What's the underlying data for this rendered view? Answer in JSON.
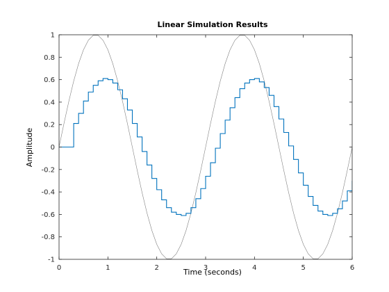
{
  "chart_data": {
    "type": "line",
    "title": "Linear Simulation Results",
    "xlabel": "Time (seconds)",
    "ylabel": "Amplitude",
    "xlim": [
      0,
      6
    ],
    "ylim": [
      -1,
      1
    ],
    "x_ticks": [
      0,
      1,
      2,
      3,
      4,
      5,
      6
    ],
    "x_tick_labels": [
      "0",
      "1",
      "2",
      "3",
      "4",
      "5",
      "6"
    ],
    "y_ticks": [
      -1,
      -0.8,
      -0.6,
      -0.4,
      -0.2,
      0,
      0.2,
      0.4,
      0.6,
      0.8,
      1
    ],
    "y_tick_labels": [
      "-1",
      "-0.8",
      "-0.6",
      "-0.4",
      "-0.2",
      "0",
      "0.2",
      "0.4",
      "0.6",
      "0.8",
      "1"
    ],
    "grid": false,
    "series": [
      {
        "style": "line",
        "color": "#808080",
        "x": [
          0,
          0.1,
          0.2,
          0.3,
          0.4,
          0.5,
          0.6,
          0.7,
          0.8,
          0.9,
          1.0,
          1.1,
          1.2,
          1.3,
          1.4,
          1.5,
          1.6,
          1.7,
          1.8,
          1.9,
          2.0,
          2.1,
          2.2,
          2.3,
          2.4,
          2.5,
          2.6,
          2.7,
          2.8,
          2.9,
          3.0,
          3.1,
          3.2,
          3.3,
          3.4,
          3.5,
          3.6,
          3.7,
          3.8,
          3.9,
          4.0,
          4.1,
          4.2,
          4.3,
          4.4,
          4.5,
          4.6,
          4.7,
          4.8,
          4.9,
          5.0,
          5.1,
          5.2,
          5.3,
          5.4,
          5.5,
          5.6,
          5.7,
          5.8,
          5.9,
          6.0
        ],
        "y": [
          0,
          0.208,
          0.407,
          0.588,
          0.743,
          0.866,
          0.951,
          0.995,
          0.995,
          0.951,
          0.866,
          0.743,
          0.588,
          0.407,
          0.208,
          0,
          -0.208,
          -0.407,
          -0.588,
          -0.743,
          -0.866,
          -0.951,
          -0.995,
          -0.995,
          -0.951,
          -0.866,
          -0.743,
          -0.588,
          -0.407,
          -0.208,
          0,
          0.208,
          0.407,
          0.588,
          0.743,
          0.866,
          0.951,
          0.995,
          0.995,
          0.951,
          0.866,
          0.743,
          0.588,
          0.407,
          0.208,
          0,
          -0.208,
          -0.407,
          -0.588,
          -0.743,
          -0.866,
          -0.951,
          -0.995,
          -0.995,
          -0.951,
          -0.866,
          -0.743,
          -0.588,
          -0.407,
          -0.208,
          0
        ]
      },
      {
        "style": "step",
        "color": "#0072bd",
        "x": [
          0,
          0.1,
          0.2,
          0.3,
          0.4,
          0.5,
          0.6,
          0.7,
          0.8,
          0.9,
          1.0,
          1.1,
          1.2,
          1.3,
          1.4,
          1.5,
          1.6,
          1.7,
          1.8,
          1.9,
          2.0,
          2.1,
          2.2,
          2.3,
          2.4,
          2.5,
          2.6,
          2.7,
          2.8,
          2.9,
          3.0,
          3.1,
          3.2,
          3.3,
          3.4,
          3.5,
          3.6,
          3.7,
          3.8,
          3.9,
          4.0,
          4.1,
          4.2,
          4.3,
          4.4,
          4.5,
          4.6,
          4.7,
          4.8,
          4.9,
          5.0,
          5.1,
          5.2,
          5.3,
          5.4,
          5.5,
          5.6,
          5.7,
          5.8,
          5.9,
          6.0
        ],
        "y": [
          0,
          0,
          0,
          0.21,
          0.3,
          0.41,
          0.49,
          0.55,
          0.59,
          0.61,
          0.6,
          0.57,
          0.51,
          0.43,
          0.33,
          0.21,
          0.09,
          -0.04,
          -0.16,
          -0.28,
          -0.38,
          -0.47,
          -0.54,
          -0.58,
          -0.6,
          -0.61,
          -0.59,
          -0.54,
          -0.46,
          -0.37,
          -0.26,
          -0.14,
          -0.01,
          0.12,
          0.24,
          0.35,
          0.44,
          0.52,
          0.57,
          0.6,
          0.61,
          0.58,
          0.53,
          0.46,
          0.36,
          0.25,
          0.13,
          0.01,
          -0.11,
          -0.23,
          -0.34,
          -0.44,
          -0.52,
          -0.57,
          -0.6,
          -0.61,
          -0.59,
          -0.55,
          -0.48,
          -0.39,
          -0.3
        ]
      }
    ]
  }
}
